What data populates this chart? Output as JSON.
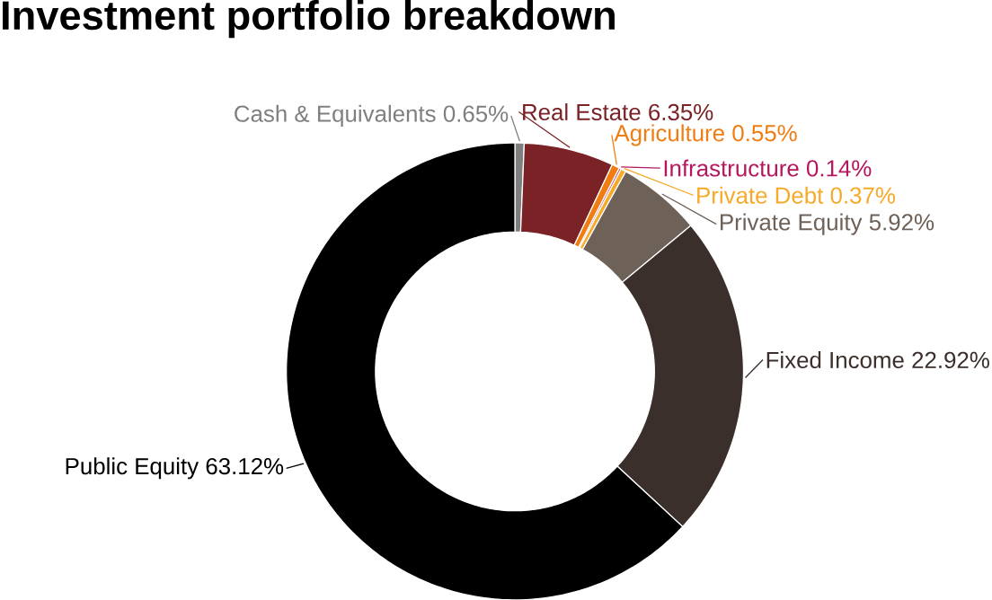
{
  "chart_data": {
    "type": "donut",
    "title": "Investment portfolio breakdown",
    "categories": [
      "Cash & Equivalents",
      "Real Estate",
      "Agriculture",
      "Infrastructure",
      "Private Debt",
      "Private Equity",
      "Fixed Income",
      "Public Equity"
    ],
    "values": [
      0.65,
      6.35,
      0.55,
      0.14,
      0.37,
      5.92,
      22.92,
      63.12
    ],
    "value_labels": [
      "0.65%",
      "6.35%",
      "0.55%",
      "0.14%",
      "0.37%",
      "5.92%",
      "22.92%",
      "63.12%"
    ],
    "colors": [
      "#7f7f7f",
      "#7a2226",
      "#f07d12",
      "#b5175e",
      "#f7a928",
      "#6e6158",
      "#3a2f2b",
      "#000000"
    ]
  }
}
